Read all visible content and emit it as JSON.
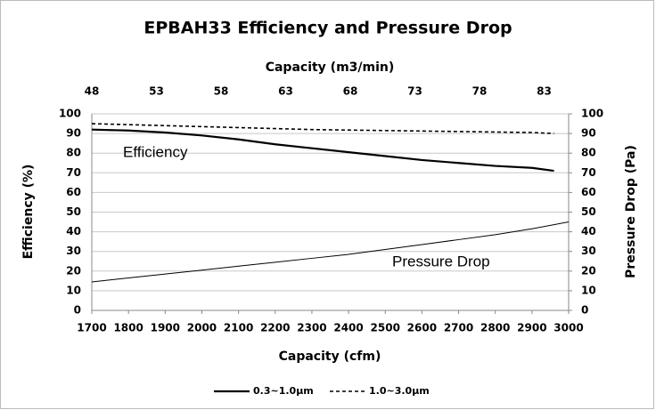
{
  "chart_data": {
    "type": "line",
    "title": "EPBAH33 Efficiency and Pressure Drop",
    "x_label": "Capacity (cfm)",
    "x2_label": "Capacity (m3/min)",
    "y_label": "Efficiency (%)",
    "y2_label": "Pressure Drop (Pa)",
    "xlim": [
      1700,
      3000
    ],
    "xticks": [
      1700,
      1800,
      1900,
      2000,
      2100,
      2200,
      2300,
      2400,
      2500,
      2600,
      2700,
      2800,
      2900,
      3000
    ],
    "x2lim": [
      48,
      84.9
    ],
    "x2ticks": [
      48,
      53,
      58,
      63,
      68,
      73,
      78,
      83
    ],
    "ylim": [
      0,
      100
    ],
    "yticks": [
      0,
      10,
      20,
      30,
      40,
      50,
      60,
      70,
      80,
      90,
      100
    ],
    "y2lim": [
      0,
      100
    ],
    "y2ticks": [
      0,
      10,
      20,
      30,
      40,
      50,
      60,
      70,
      80,
      90,
      100
    ],
    "grid": true,
    "series": [
      {
        "name": "0.3~1.0µm",
        "color": "#000000",
        "dash": "solid",
        "x": [
          1700,
          1800,
          1900,
          2000,
          2100,
          2200,
          2300,
          2400,
          2500,
          2600,
          2700,
          2800,
          2900,
          2960
        ],
        "values": [
          92,
          91.5,
          90.5,
          89,
          87,
          84.5,
          82.5,
          80.5,
          78.5,
          76.5,
          75,
          73.5,
          72.5,
          71
        ]
      },
      {
        "name": "1.0~3.0µm",
        "color": "#000000",
        "dash": "dashed",
        "x": [
          1700,
          1900,
          2100,
          2300,
          2500,
          2700,
          2900,
          2960
        ],
        "values": [
          95,
          94,
          93,
          92,
          91.5,
          91,
          90.5,
          90
        ]
      },
      {
        "color": "#000000",
        "dash": "thin",
        "axis": "y2",
        "x": [
          1700,
          1800,
          1900,
          2000,
          2100,
          2200,
          2300,
          2400,
          2500,
          2600,
          2700,
          2800,
          2900,
          3000
        ],
        "values": [
          14.5,
          16.5,
          18.5,
          20.5,
          22.5,
          24.5,
          26.5,
          28.5,
          31,
          33.5,
          36,
          38.5,
          41.5,
          45
        ]
      }
    ],
    "annotations": [
      {
        "text": "Efficiency",
        "color": "#e00000"
      },
      {
        "text": "Pressure Drop",
        "color": "#7b7bd6"
      }
    ]
  }
}
